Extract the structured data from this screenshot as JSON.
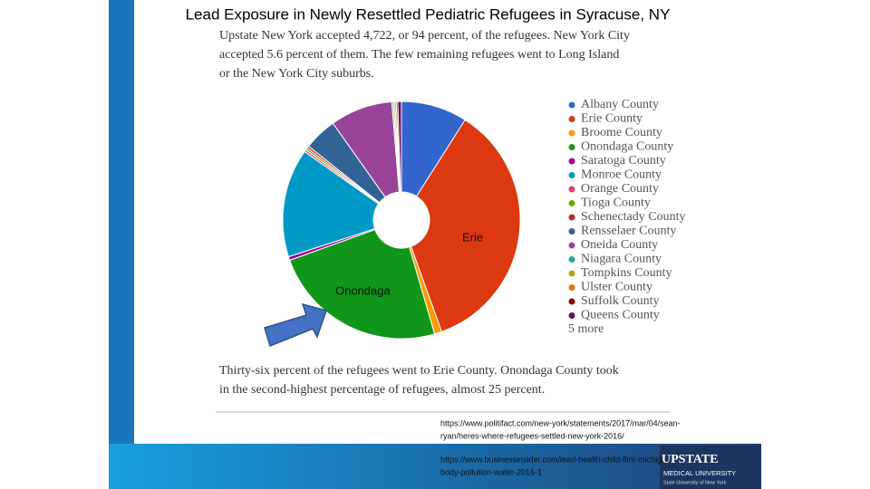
{
  "slide": {
    "title": "Lead Exposure in Newly Resettled Pediatric Refugees in Syracuse, NY",
    "intro_lines": [
      "Upstate New York accepted 4,722, or 94 percent, of the refugees. New York City",
      "accepted 5.6 percent of them. The few remaining refugees went to Long Island",
      "or the New York City suburbs."
    ],
    "outro_lines": [
      "Thirty-six percent of the refugees went to Erie County. Onondaga County took",
      "in the second-highest percentage of refugees, almost 25 percent."
    ],
    "source_lines": [
      "https://www.politifact.com/new-york/statements/2017/mar/04/sean-",
      "ryan/heres-where-refugees-settled-new-york-2016/",
      "https://www.businessinsider.com/lead-health-child-flint-michigan-",
      "body-pollution-water-2016-1"
    ],
    "logo": [
      "UPSTATE",
      "MEDICAL UNIVERSITY",
      "State University of New York"
    ]
  },
  "chart_data": {
    "type": "pie",
    "categories": [
      "Albany County",
      "Erie County",
      "Broome County",
      "Onondaga County",
      "Saratoga County",
      "Monroe County",
      "Orange County",
      "Tioga County",
      "Schenectady County",
      "Rensselaer County",
      "Oneida County",
      "Niagara County",
      "Tompkins County",
      "Ulster County",
      "Suffolk County",
      "Queens County"
    ],
    "values": [
      9,
      35.5,
      1,
      24,
      0.5,
      14.8,
      0.3,
      0.3,
      0.3,
      4.5,
      8.5,
      0.2,
      0.2,
      0.2,
      0.2,
      0.5
    ],
    "colors": [
      "#3366cc",
      "#dc3912",
      "#ff9900",
      "#109618",
      "#990099",
      "#0099c6",
      "#dd4477",
      "#66aa00",
      "#b82e2e",
      "#316395",
      "#994499",
      "#22aa99",
      "#aaaa11",
      "#e67300",
      "#8b0707",
      "#651067"
    ],
    "legend_more": "5 more",
    "annotations": [
      "Erie",
      "Onondaga"
    ]
  }
}
